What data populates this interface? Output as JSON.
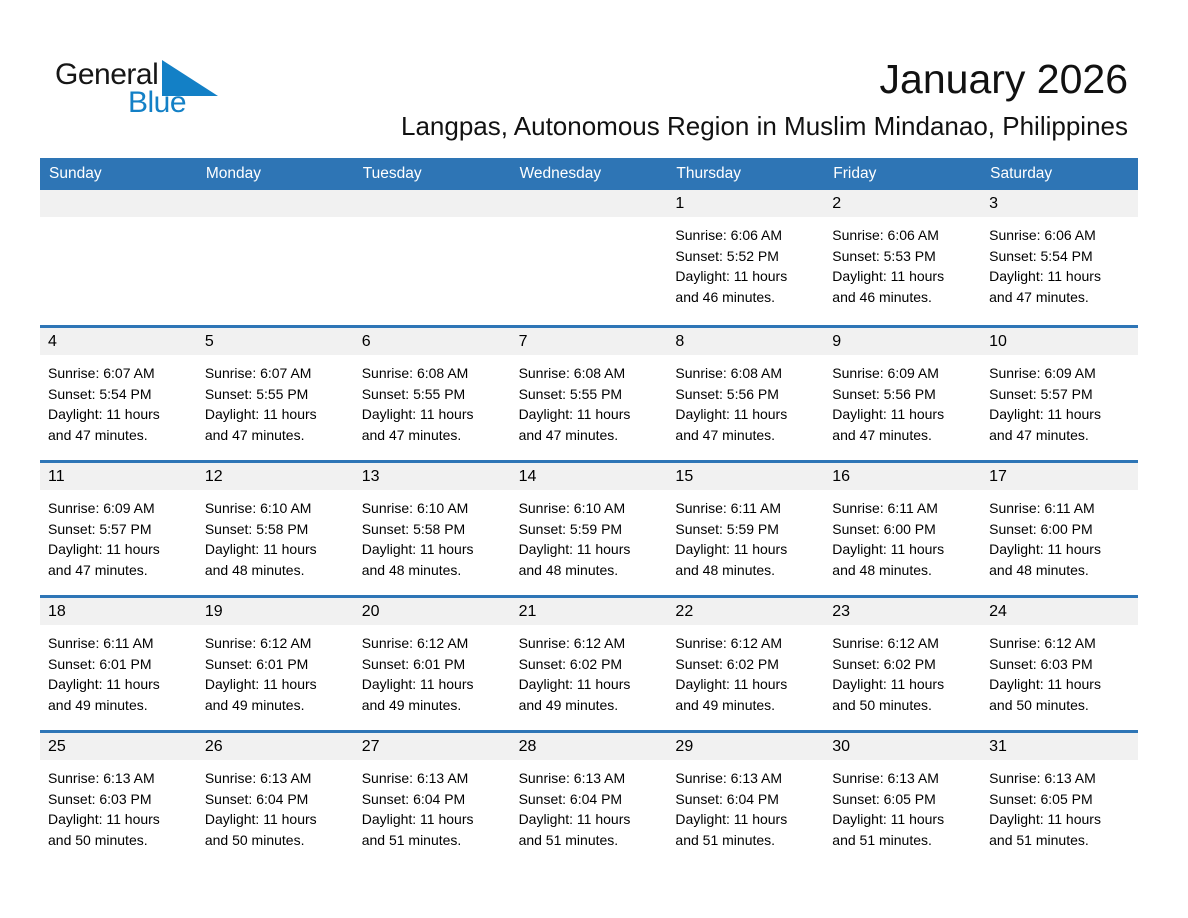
{
  "logo": {
    "general": "General",
    "blue": "Blue"
  },
  "header": {
    "month_year": "January 2026",
    "location": "Langpas, Autonomous Region in Muslim Mindanao, Philippines"
  },
  "labels": {
    "sunrise": "Sunrise:",
    "sunset": "Sunset:",
    "daylight": "Daylight:"
  },
  "calendar": {
    "weekdays": [
      "Sunday",
      "Monday",
      "Tuesday",
      "Wednesday",
      "Thursday",
      "Friday",
      "Saturday"
    ],
    "weeks": [
      [
        null,
        null,
        null,
        null,
        {
          "day": "1",
          "sunrise": "6:06 AM",
          "sunset": "5:52 PM",
          "daylight": "11 hours and 46 minutes."
        },
        {
          "day": "2",
          "sunrise": "6:06 AM",
          "sunset": "5:53 PM",
          "daylight": "11 hours and 46 minutes."
        },
        {
          "day": "3",
          "sunrise": "6:06 AM",
          "sunset": "5:54 PM",
          "daylight": "11 hours and 47 minutes."
        }
      ],
      [
        {
          "day": "4",
          "sunrise": "6:07 AM",
          "sunset": "5:54 PM",
          "daylight": "11 hours and 47 minutes."
        },
        {
          "day": "5",
          "sunrise": "6:07 AM",
          "sunset": "5:55 PM",
          "daylight": "11 hours and 47 minutes."
        },
        {
          "day": "6",
          "sunrise": "6:08 AM",
          "sunset": "5:55 PM",
          "daylight": "11 hours and 47 minutes."
        },
        {
          "day": "7",
          "sunrise": "6:08 AM",
          "sunset": "5:55 PM",
          "daylight": "11 hours and 47 minutes."
        },
        {
          "day": "8",
          "sunrise": "6:08 AM",
          "sunset": "5:56 PM",
          "daylight": "11 hours and 47 minutes."
        },
        {
          "day": "9",
          "sunrise": "6:09 AM",
          "sunset": "5:56 PM",
          "daylight": "11 hours and 47 minutes."
        },
        {
          "day": "10",
          "sunrise": "6:09 AM",
          "sunset": "5:57 PM",
          "daylight": "11 hours and 47 minutes."
        }
      ],
      [
        {
          "day": "11",
          "sunrise": "6:09 AM",
          "sunset": "5:57 PM",
          "daylight": "11 hours and 47 minutes."
        },
        {
          "day": "12",
          "sunrise": "6:10 AM",
          "sunset": "5:58 PM",
          "daylight": "11 hours and 48 minutes."
        },
        {
          "day": "13",
          "sunrise": "6:10 AM",
          "sunset": "5:58 PM",
          "daylight": "11 hours and 48 minutes."
        },
        {
          "day": "14",
          "sunrise": "6:10 AM",
          "sunset": "5:59 PM",
          "daylight": "11 hours and 48 minutes."
        },
        {
          "day": "15",
          "sunrise": "6:11 AM",
          "sunset": "5:59 PM",
          "daylight": "11 hours and 48 minutes."
        },
        {
          "day": "16",
          "sunrise": "6:11 AM",
          "sunset": "6:00 PM",
          "daylight": "11 hours and 48 minutes."
        },
        {
          "day": "17",
          "sunrise": "6:11 AM",
          "sunset": "6:00 PM",
          "daylight": "11 hours and 48 minutes."
        }
      ],
      [
        {
          "day": "18",
          "sunrise": "6:11 AM",
          "sunset": "6:01 PM",
          "daylight": "11 hours and 49 minutes."
        },
        {
          "day": "19",
          "sunrise": "6:12 AM",
          "sunset": "6:01 PM",
          "daylight": "11 hours and 49 minutes."
        },
        {
          "day": "20",
          "sunrise": "6:12 AM",
          "sunset": "6:01 PM",
          "daylight": "11 hours and 49 minutes."
        },
        {
          "day": "21",
          "sunrise": "6:12 AM",
          "sunset": "6:02 PM",
          "daylight": "11 hours and 49 minutes."
        },
        {
          "day": "22",
          "sunrise": "6:12 AM",
          "sunset": "6:02 PM",
          "daylight": "11 hours and 49 minutes."
        },
        {
          "day": "23",
          "sunrise": "6:12 AM",
          "sunset": "6:02 PM",
          "daylight": "11 hours and 50 minutes."
        },
        {
          "day": "24",
          "sunrise": "6:12 AM",
          "sunset": "6:03 PM",
          "daylight": "11 hours and 50 minutes."
        }
      ],
      [
        {
          "day": "25",
          "sunrise": "6:13 AM",
          "sunset": "6:03 PM",
          "daylight": "11 hours and 50 minutes."
        },
        {
          "day": "26",
          "sunrise": "6:13 AM",
          "sunset": "6:04 PM",
          "daylight": "11 hours and 50 minutes."
        },
        {
          "day": "27",
          "sunrise": "6:13 AM",
          "sunset": "6:04 PM",
          "daylight": "11 hours and 51 minutes."
        },
        {
          "day": "28",
          "sunrise": "6:13 AM",
          "sunset": "6:04 PM",
          "daylight": "11 hours and 51 minutes."
        },
        {
          "day": "29",
          "sunrise": "6:13 AM",
          "sunset": "6:04 PM",
          "daylight": "11 hours and 51 minutes."
        },
        {
          "day": "30",
          "sunrise": "6:13 AM",
          "sunset": "6:05 PM",
          "daylight": "11 hours and 51 minutes."
        },
        {
          "day": "31",
          "sunrise": "6:13 AM",
          "sunset": "6:05 PM",
          "daylight": "11 hours and 51 minutes."
        }
      ]
    ]
  },
  "colors": {
    "header_blue": "#2E75B5",
    "separator_blue": "#2E75B6",
    "band_gray": "#F1F1F1",
    "logo_blue": "#1380C6"
  }
}
